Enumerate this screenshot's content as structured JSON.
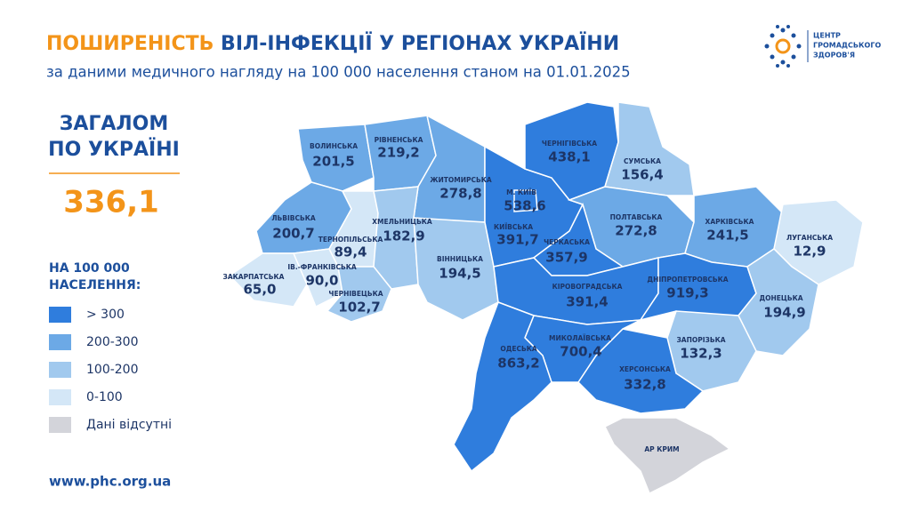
{
  "header": {
    "title_highlight": "ПОШИРЕНІСТЬ",
    "title_rest": "ВІЛ-ІНФЕКЦІЇ У РЕГІОНАХ УКРАЇНИ",
    "subtitle": "за даними медичного нагляду на 100 000 населення станом на 01.01.2025"
  },
  "logo": {
    "lines": [
      "ЦЕНТР",
      "ГРОМАДСЬКОГО",
      "ЗДОРОВ'Я"
    ]
  },
  "total": {
    "label_lines": [
      "ЗАГАЛОМ",
      "ПО УКРАЇНІ"
    ],
    "value": "336,1"
  },
  "legend": {
    "title_lines": [
      "НА 100 000",
      "НАСЕЛЕННЯ:"
    ],
    "items": [
      {
        "label": "> 300",
        "color": "#2f7ddd"
      },
      {
        "label": "200-300",
        "color": "#6ca9e6"
      },
      {
        "label": "100-200",
        "color": "#a1c9ee"
      },
      {
        "label": "0-100",
        "color": "#d4e7f7"
      },
      {
        "label": "Дані відсутні",
        "color": "#d3d4da"
      }
    ]
  },
  "regions": [
    {
      "name": "ВОЛИНСЬКА",
      "value": "201,5",
      "color": "#6ca9e6"
    },
    {
      "name": "РІВНЕНСЬКА",
      "value": "219,2",
      "color": "#6ca9e6"
    },
    {
      "name": "ЖИТОМИРСЬКА",
      "value": "278,8",
      "color": "#6ca9e6"
    },
    {
      "name": "ЛЬВІВСЬКА",
      "value": "200,7",
      "color": "#6ca9e6"
    },
    {
      "name": "ТЕРНОПІЛЬСЬКА",
      "value": "89,4",
      "color": "#d4e7f7"
    },
    {
      "name": "ХМЕЛЬНИЦЬКА",
      "value": "182,9",
      "color": "#a1c9ee"
    },
    {
      "name": "ВІННИЦЬКА",
      "value": "194,5",
      "color": "#a1c9ee"
    },
    {
      "name": "ЗАКАРПАТСЬКА",
      "value": "65,0",
      "color": "#d4e7f7"
    },
    {
      "name": "ІВ.-ФРАНКІВСЬКА",
      "value": "90,0",
      "color": "#d4e7f7"
    },
    {
      "name": "ЧЕРНІВЕЦЬКА",
      "value": "102,7",
      "color": "#a1c9ee"
    },
    {
      "name": "КИЇВСЬКА",
      "value": "391,7",
      "color": "#2f7ddd"
    },
    {
      "name": "ЧЕРНІГІВСЬКА",
      "value": "438,1",
      "color": "#2f7ddd"
    },
    {
      "name": "СУМСЬКА",
      "value": "156,4",
      "color": "#a1c9ee"
    },
    {
      "name": "ПОЛТАВСЬКА",
      "value": "272,8",
      "color": "#6ca9e6"
    },
    {
      "name": "ХАРКІВСЬКА",
      "value": "241,5",
      "color": "#6ca9e6"
    },
    {
      "name": "ЛУГАНСЬКА",
      "value": "12,9",
      "color": "#d4e7f7"
    },
    {
      "name": "ЧЕРКАСЬКА",
      "value": "357,9",
      "color": "#2f7ddd"
    },
    {
      "name": "КІРОВОГРАДСЬКА",
      "value": "391,4",
      "color": "#2f7ddd"
    },
    {
      "name": "ДНІПРОПЕТРОВСЬКА",
      "value": "919,3",
      "color": "#2f7ddd"
    },
    {
      "name": "ДОНЕЦЬКА",
      "value": "194,9",
      "color": "#a1c9ee"
    },
    {
      "name": "ЗАПОРІЗЬКА",
      "value": "132,3",
      "color": "#a1c9ee"
    },
    {
      "name": "ХЕРСОНСЬКА",
      "value": "332,8",
      "color": "#2f7ddd"
    },
    {
      "name": "МИКОЛАЇВСЬКА",
      "value": "700,4",
      "color": "#2f7ddd"
    },
    {
      "name": "ОДЕСЬКА",
      "value": "863,2",
      "color": "#2f7ddd"
    },
    {
      "name": "М. КИЇВ",
      "value": "538,6",
      "color": "#2f7ddd"
    },
    {
      "name": "АР КРИМ",
      "color": "#d3d4da"
    }
  ],
  "footer": {
    "url": "www.phc.org.ua"
  }
}
